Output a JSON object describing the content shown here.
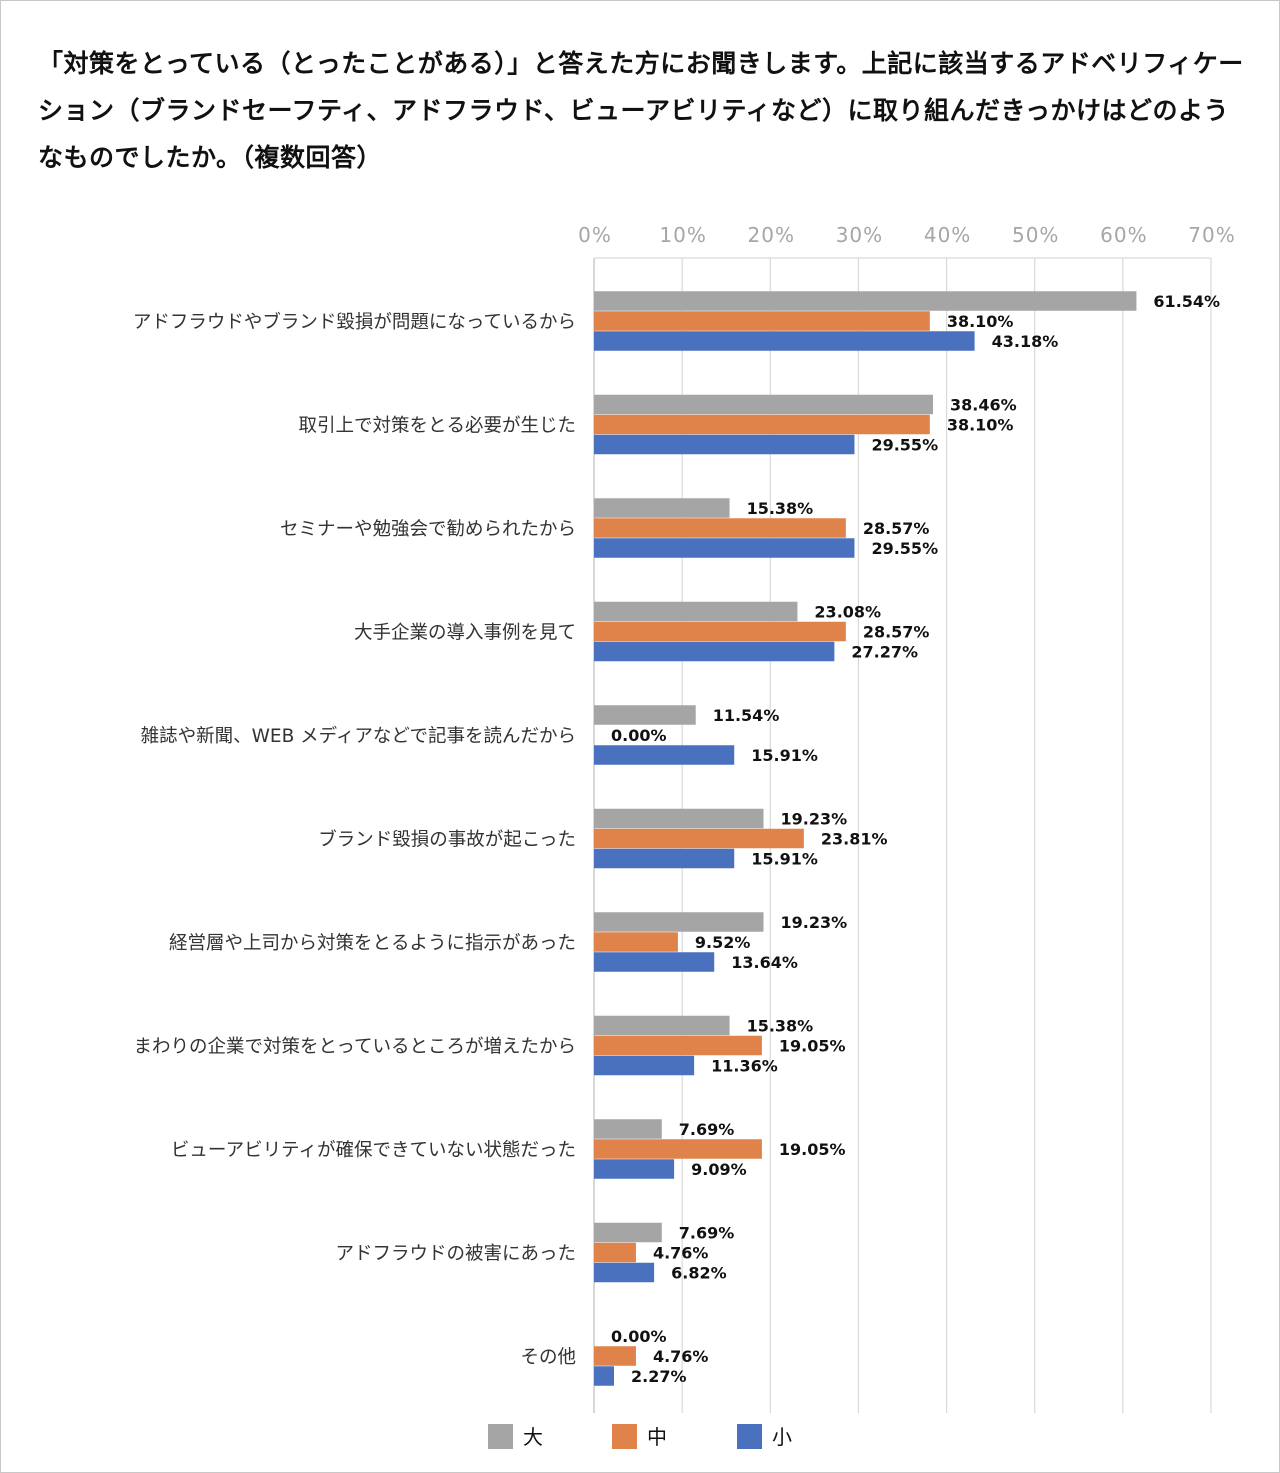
{
  "chart_data": {
    "type": "bar",
    "orientation": "horizontal",
    "title": "「対策をとっている（とったことがある）」と答えた方にお聞きします。上記に該当するアドベリフィケーション（ブランドセーフティ、アドフラウド、ビューアビリティなど）に取り組んだきっかけはどのようなものでしたか。（複数回答）",
    "categories": [
      "アドフラウドやブランド毀損が問題になっているから",
      "取引上で対策をとる必要が生じた",
      "セミナーや勉強会で勧められたから",
      "大手企業の導入事例を見て",
      "雑誌や新聞、WEB メディアなどで記事を読んだから",
      "ブランド毀損の事故が起こった",
      "経営層や上司から対策をとるように指示があった",
      "まわりの企業で対策をとっているところが増えたから",
      "ビューアビリティが確保できていない状態だった",
      "アドフラウドの被害にあった",
      "その他"
    ],
    "series": [
      {
        "name": "大",
        "color": "#a5a5a5",
        "values": [
          61.54,
          38.46,
          15.38,
          23.08,
          11.54,
          19.23,
          19.23,
          15.38,
          7.69,
          7.69,
          0.0
        ]
      },
      {
        "name": "中",
        "color": "#e0834a",
        "values": [
          38.1,
          38.1,
          28.57,
          28.57,
          0.0,
          23.81,
          9.52,
          19.05,
          19.05,
          4.76,
          4.76
        ]
      },
      {
        "name": "小",
        "color": "#4a71bd",
        "values": [
          43.18,
          29.55,
          29.55,
          27.27,
          15.91,
          15.91,
          13.64,
          11.36,
          9.09,
          6.82,
          2.27
        ]
      }
    ],
    "xlim": [
      0,
      70
    ],
    "xticks": [
      "0%",
      "10%",
      "20%",
      "30%",
      "40%",
      "50%",
      "60%",
      "70%"
    ],
    "xlabel": "",
    "ylabel": "",
    "grid": true,
    "legend": "bottom",
    "data_label_format": "percent-2dp"
  }
}
